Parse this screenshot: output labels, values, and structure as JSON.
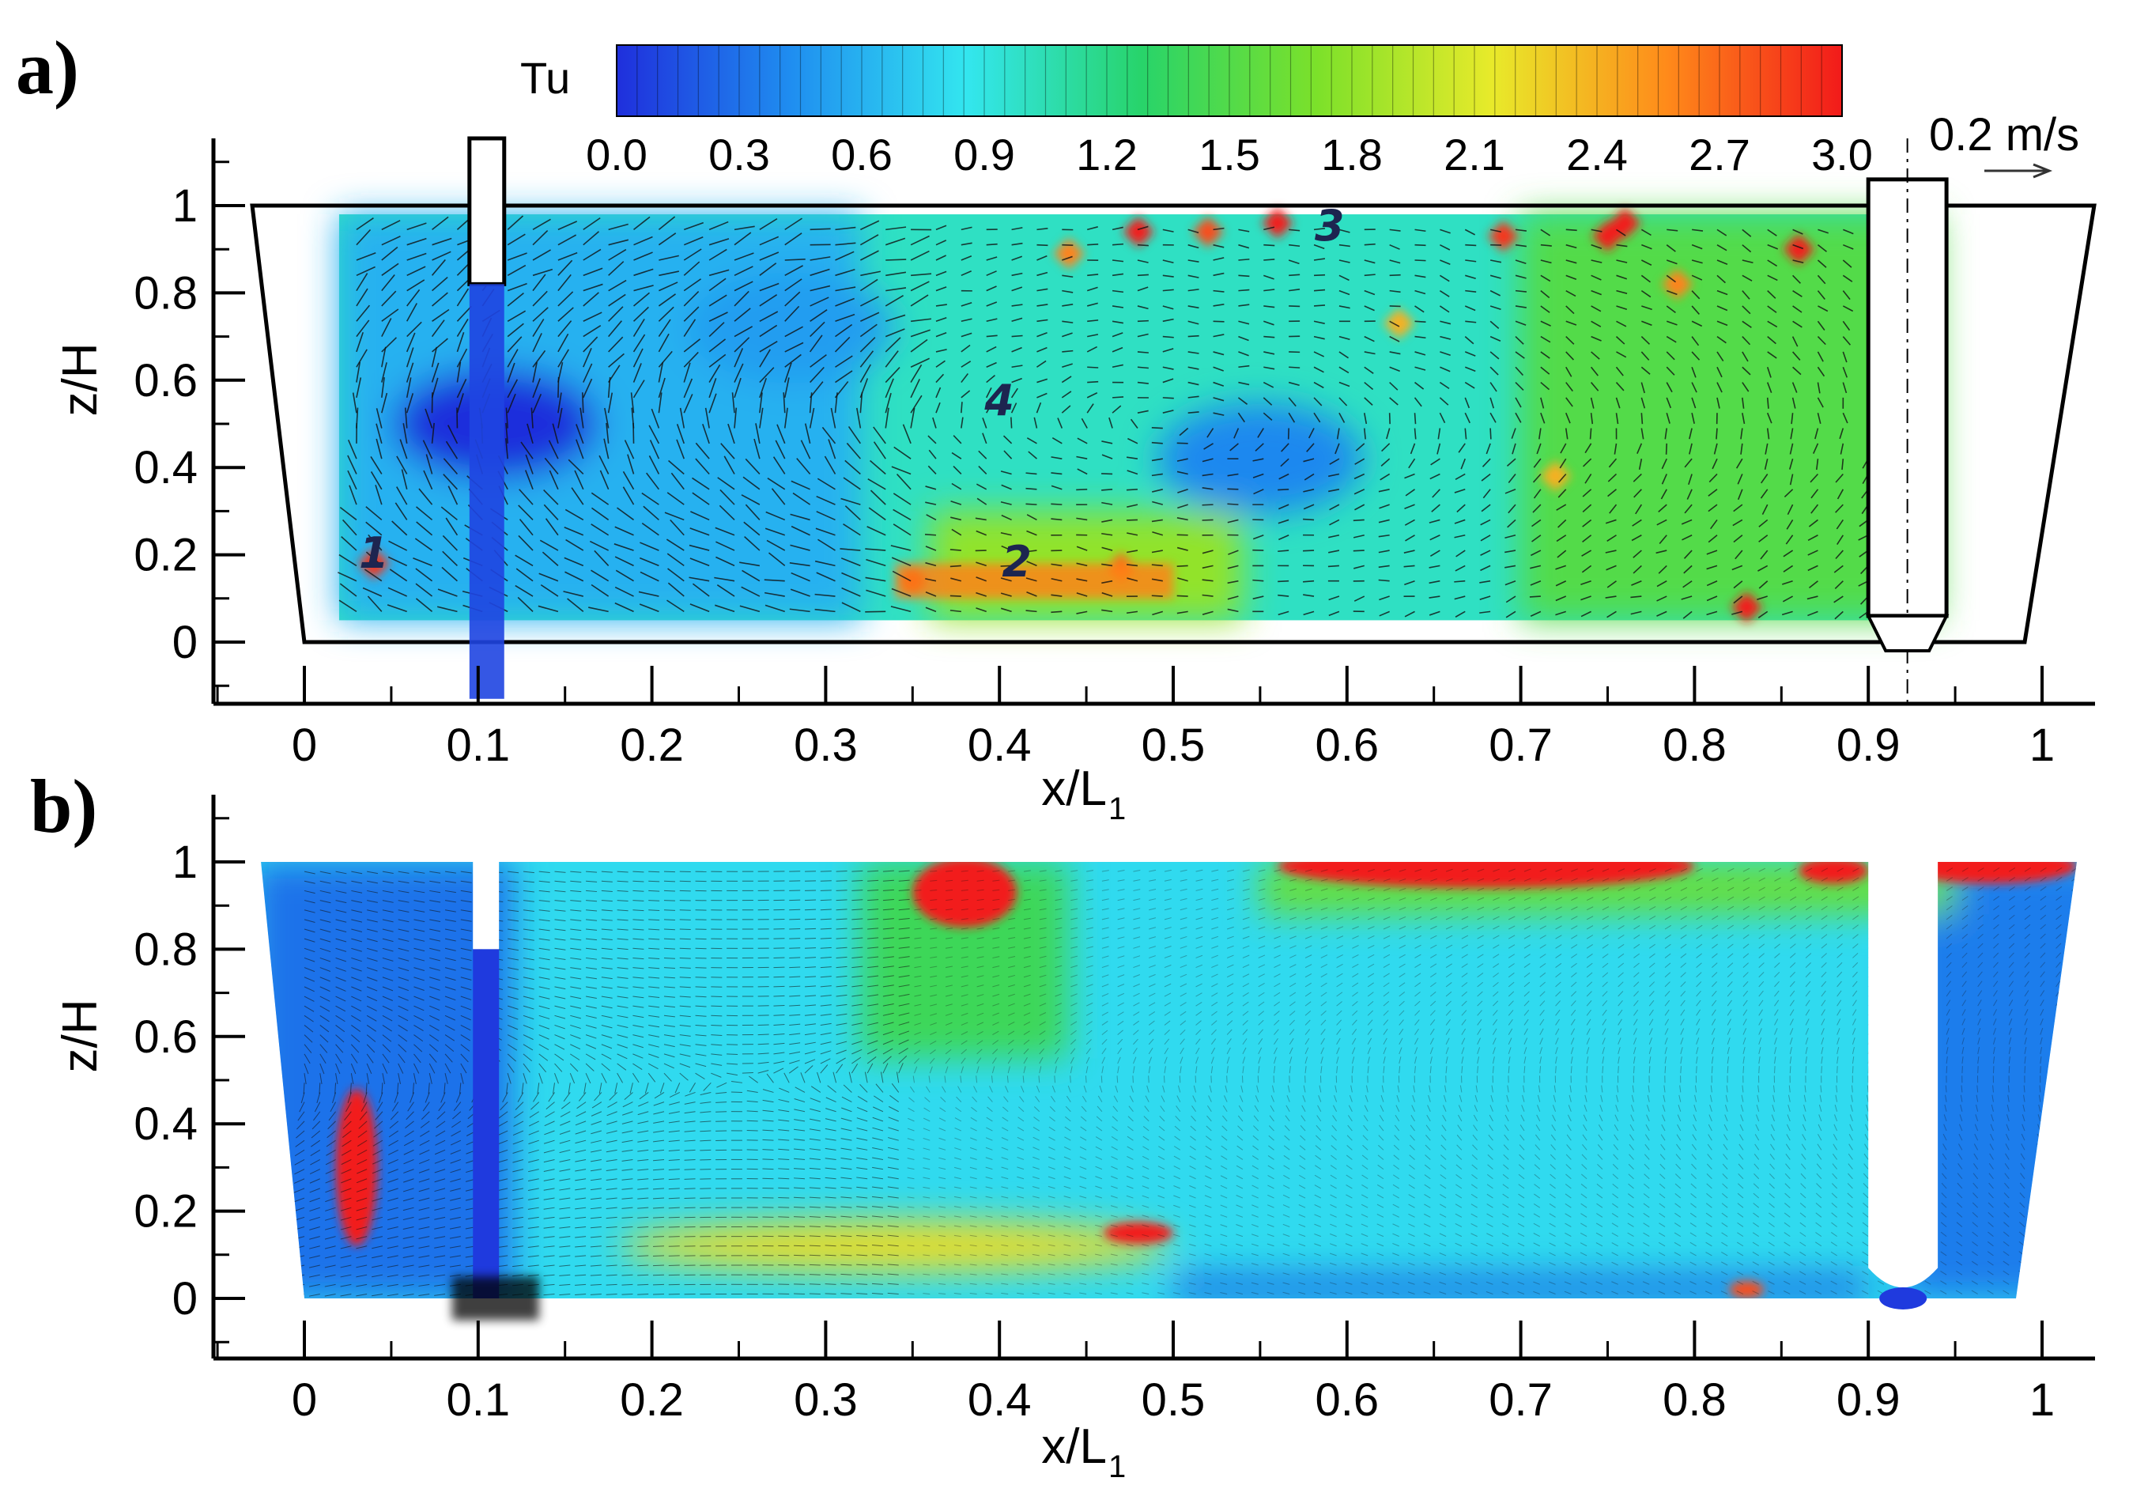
{
  "colors": {
    "colormap": [
      "#1f2fdc",
      "#1f8ef0",
      "#33e6ef",
      "#28d46a",
      "#7ce12a",
      "#e8ea2a",
      "#ff8a1a",
      "#f21a1a"
    ],
    "outline": "#000000",
    "vector": "#111111"
  },
  "colorbar": {
    "title": "Tu",
    "tick_labels": [
      "0.0",
      "0.3",
      "0.6",
      "0.9",
      "1.2",
      "1.5",
      "1.8",
      "2.1",
      "2.4",
      "2.7",
      "3.0"
    ],
    "range": [
      0.0,
      3.0
    ]
  },
  "scale_vector": {
    "label": "0.2 m/s"
  },
  "chart_data": [
    {
      "type": "heatmap",
      "panel_label": "a)",
      "title": "",
      "xlabel": "x/L",
      "xlabel_sub": "1",
      "ylabel": "z/H",
      "x_ticks": [
        "0",
        "0.1",
        "0.2",
        "0.3",
        "0.4",
        "0.5",
        "0.6",
        "0.7",
        "0.8",
        "0.9",
        "1"
      ],
      "y_ticks": [
        "0",
        "0.2",
        "0.4",
        "0.6",
        "0.8",
        "1"
      ],
      "xlim": [
        -0.05,
        1.02
      ],
      "ylim": [
        -0.13,
        1.15
      ],
      "field": "Tu",
      "field_range": [
        0.0,
        3.0
      ],
      "measurement_window": {
        "x": [
          0.02,
          0.94
        ],
        "z": [
          0.05,
          0.98
        ]
      },
      "annotations": [
        {
          "text": "1",
          "x": 0.04,
          "z": 0.17
        },
        {
          "text": "2",
          "x": 0.41,
          "z": 0.15
        },
        {
          "text": "3",
          "x": 0.59,
          "z": 0.92
        },
        {
          "text": "4",
          "x": 0.4,
          "z": 0.52
        }
      ],
      "high_spots": [
        {
          "x": 0.04,
          "z": 0.18,
          "value": 2.9
        },
        {
          "x": 0.35,
          "z": 0.14,
          "value": 3.0
        },
        {
          "x": 0.47,
          "z": 0.17,
          "value": 2.7
        },
        {
          "x": 0.48,
          "z": 0.94,
          "value": 3.0
        },
        {
          "x": 0.52,
          "z": 0.94,
          "value": 2.8
        },
        {
          "x": 0.56,
          "z": 0.96,
          "value": 3.0
        },
        {
          "x": 0.69,
          "z": 0.93,
          "value": 2.9
        },
        {
          "x": 0.75,
          "z": 0.93,
          "value": 3.0
        },
        {
          "x": 0.76,
          "z": 0.96,
          "value": 3.0
        },
        {
          "x": 0.86,
          "z": 0.9,
          "value": 3.0
        },
        {
          "x": 0.83,
          "z": 0.08,
          "value": 3.0
        },
        {
          "x": 0.44,
          "z": 0.89,
          "value": 2.6
        },
        {
          "x": 0.63,
          "z": 0.73,
          "value": 2.4
        },
        {
          "x": 0.72,
          "z": 0.38,
          "value": 2.4
        },
        {
          "x": 0.79,
          "z": 0.82,
          "value": 2.6
        }
      ],
      "low_regions": [
        {
          "x": 0.55,
          "z": 0.42,
          "value": 0.4
        },
        {
          "x": 0.11,
          "z": 0.5,
          "value": 0.0
        },
        {
          "x": 0.28,
          "z": 0.72,
          "value": 0.5
        }
      ]
    },
    {
      "type": "heatmap",
      "panel_label": "b)",
      "title": "",
      "xlabel": "x/L",
      "xlabel_sub": "1",
      "ylabel": "z/H",
      "x_ticks": [
        "0",
        "0.1",
        "0.2",
        "0.3",
        "0.4",
        "0.5",
        "0.6",
        "0.7",
        "0.8",
        "0.9",
        "1"
      ],
      "y_ticks": [
        "0",
        "0.2",
        "0.4",
        "0.6",
        "0.8",
        "1"
      ],
      "xlim": [
        -0.05,
        1.02
      ],
      "ylim": [
        -0.13,
        1.15
      ],
      "field": "Tu",
      "field_range": [
        0.0,
        3.0
      ],
      "high_regions": [
        {
          "x": 0.03,
          "z": 0.3,
          "rx": 0.012,
          "rz": 0.18,
          "value": 3.0
        },
        {
          "x": 0.38,
          "z": 0.93,
          "rx": 0.03,
          "rz": 0.08,
          "value": 3.0
        },
        {
          "x": 0.68,
          "z": 0.99,
          "rx": 0.12,
          "rz": 0.05,
          "value": 3.0
        },
        {
          "x": 0.97,
          "z": 0.99,
          "rx": 0.05,
          "rz": 0.04,
          "value": 3.0
        },
        {
          "x": 0.88,
          "z": 0.98,
          "rx": 0.02,
          "rz": 0.03,
          "value": 3.0
        },
        {
          "x": 0.48,
          "z": 0.15,
          "rx": 0.02,
          "rz": 0.025,
          "value": 3.0
        },
        {
          "x": 0.83,
          "z": 0.02,
          "rx": 0.01,
          "rz": 0.02,
          "value": 2.8
        }
      ],
      "jet": {
        "x": [
          0.18,
          0.5
        ],
        "z": 0.12,
        "value": 2.2
      }
    }
  ]
}
